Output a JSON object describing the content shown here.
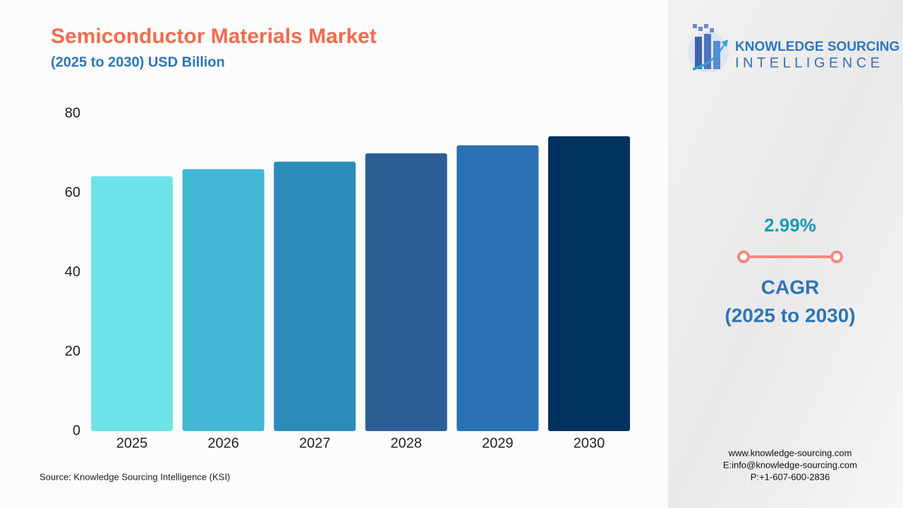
{
  "chart_data": {
    "type": "bar",
    "title": "Semiconductor Materials Market",
    "subtitle": "(2025 to 2030) USD Billion",
    "categories": [
      "2025",
      "2026",
      "2027",
      "2028",
      "2029",
      "2030"
    ],
    "values": [
      64.2,
      66.0,
      67.9,
      70.0,
      72.0,
      74.3
    ],
    "colors": [
      "#6de3e8",
      "#42b8d4",
      "#2b8cba",
      "#2d5f96",
      "#2a72b5",
      "#003260"
    ],
    "ylim": [
      0,
      80
    ],
    "yticks": [
      0,
      20,
      40,
      60,
      80
    ],
    "grid": false,
    "source": "Source: Knowledge Sourcing Intelligence (KSI)"
  },
  "brand": {
    "line1": "KNOWLEDGE SOURCING",
    "line2": "INTELLIGENCE"
  },
  "cagr": {
    "value": "2.99%",
    "label": "CAGR",
    "period": "(2025 to 2030)"
  },
  "contact": {
    "web": "www.knowledge-sourcing.com",
    "email": "E:info@knowledge-sourcing.com",
    "phone": "P:+1-607-600-2836"
  }
}
